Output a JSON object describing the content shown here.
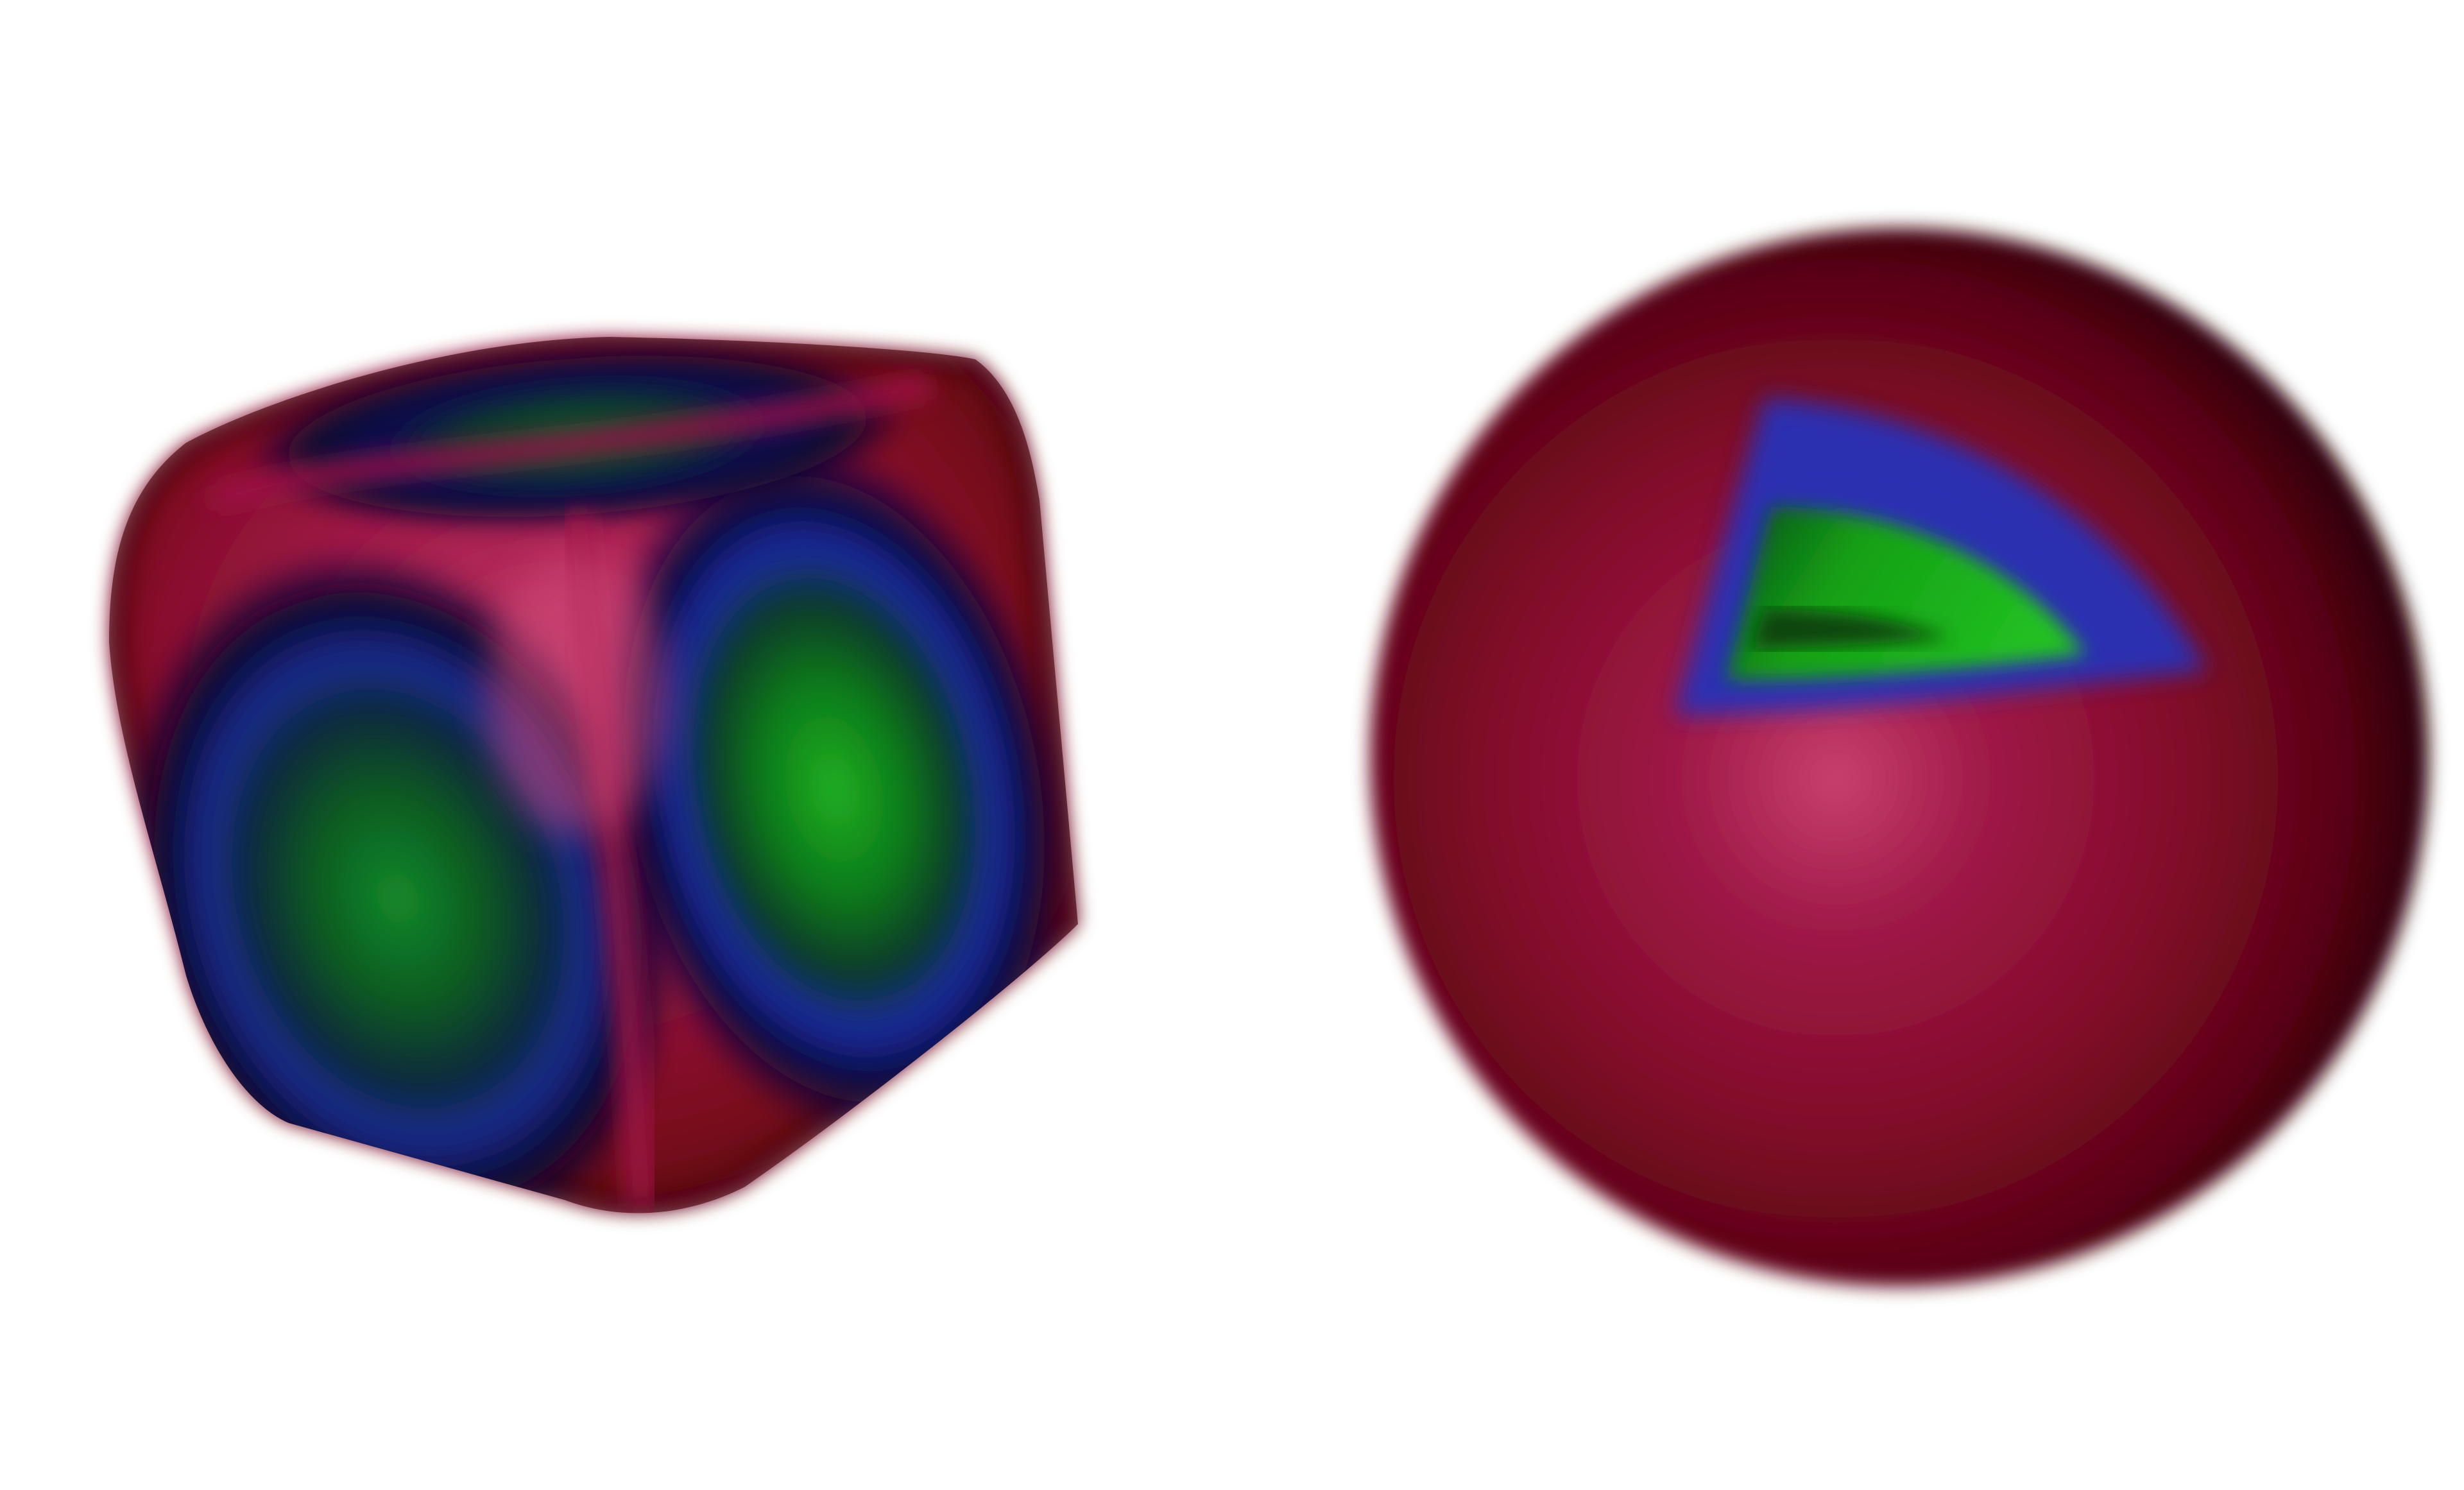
{
  "scene": {
    "objects": [
      {
        "kind": "rounded-cube",
        "colors": {
          "edge": "#7a0a1e",
          "face_center": "#c8406e",
          "ring_blue": "#2a3aa8",
          "ring_dark": "#0a0a30",
          "spot_green": "#1aa01a",
          "spot_dark_green": "#0a5a12"
        }
      },
      {
        "kind": "sphere",
        "colors": {
          "highlight": "#c8406e",
          "body": "#8a0c2c",
          "shadow": "#3a0008",
          "wedge_blue": "#2630b8",
          "wedge_green": "#1cb81c",
          "wedge_dark_green": "#0a4a10"
        }
      }
    ],
    "background": "#ffffff"
  }
}
